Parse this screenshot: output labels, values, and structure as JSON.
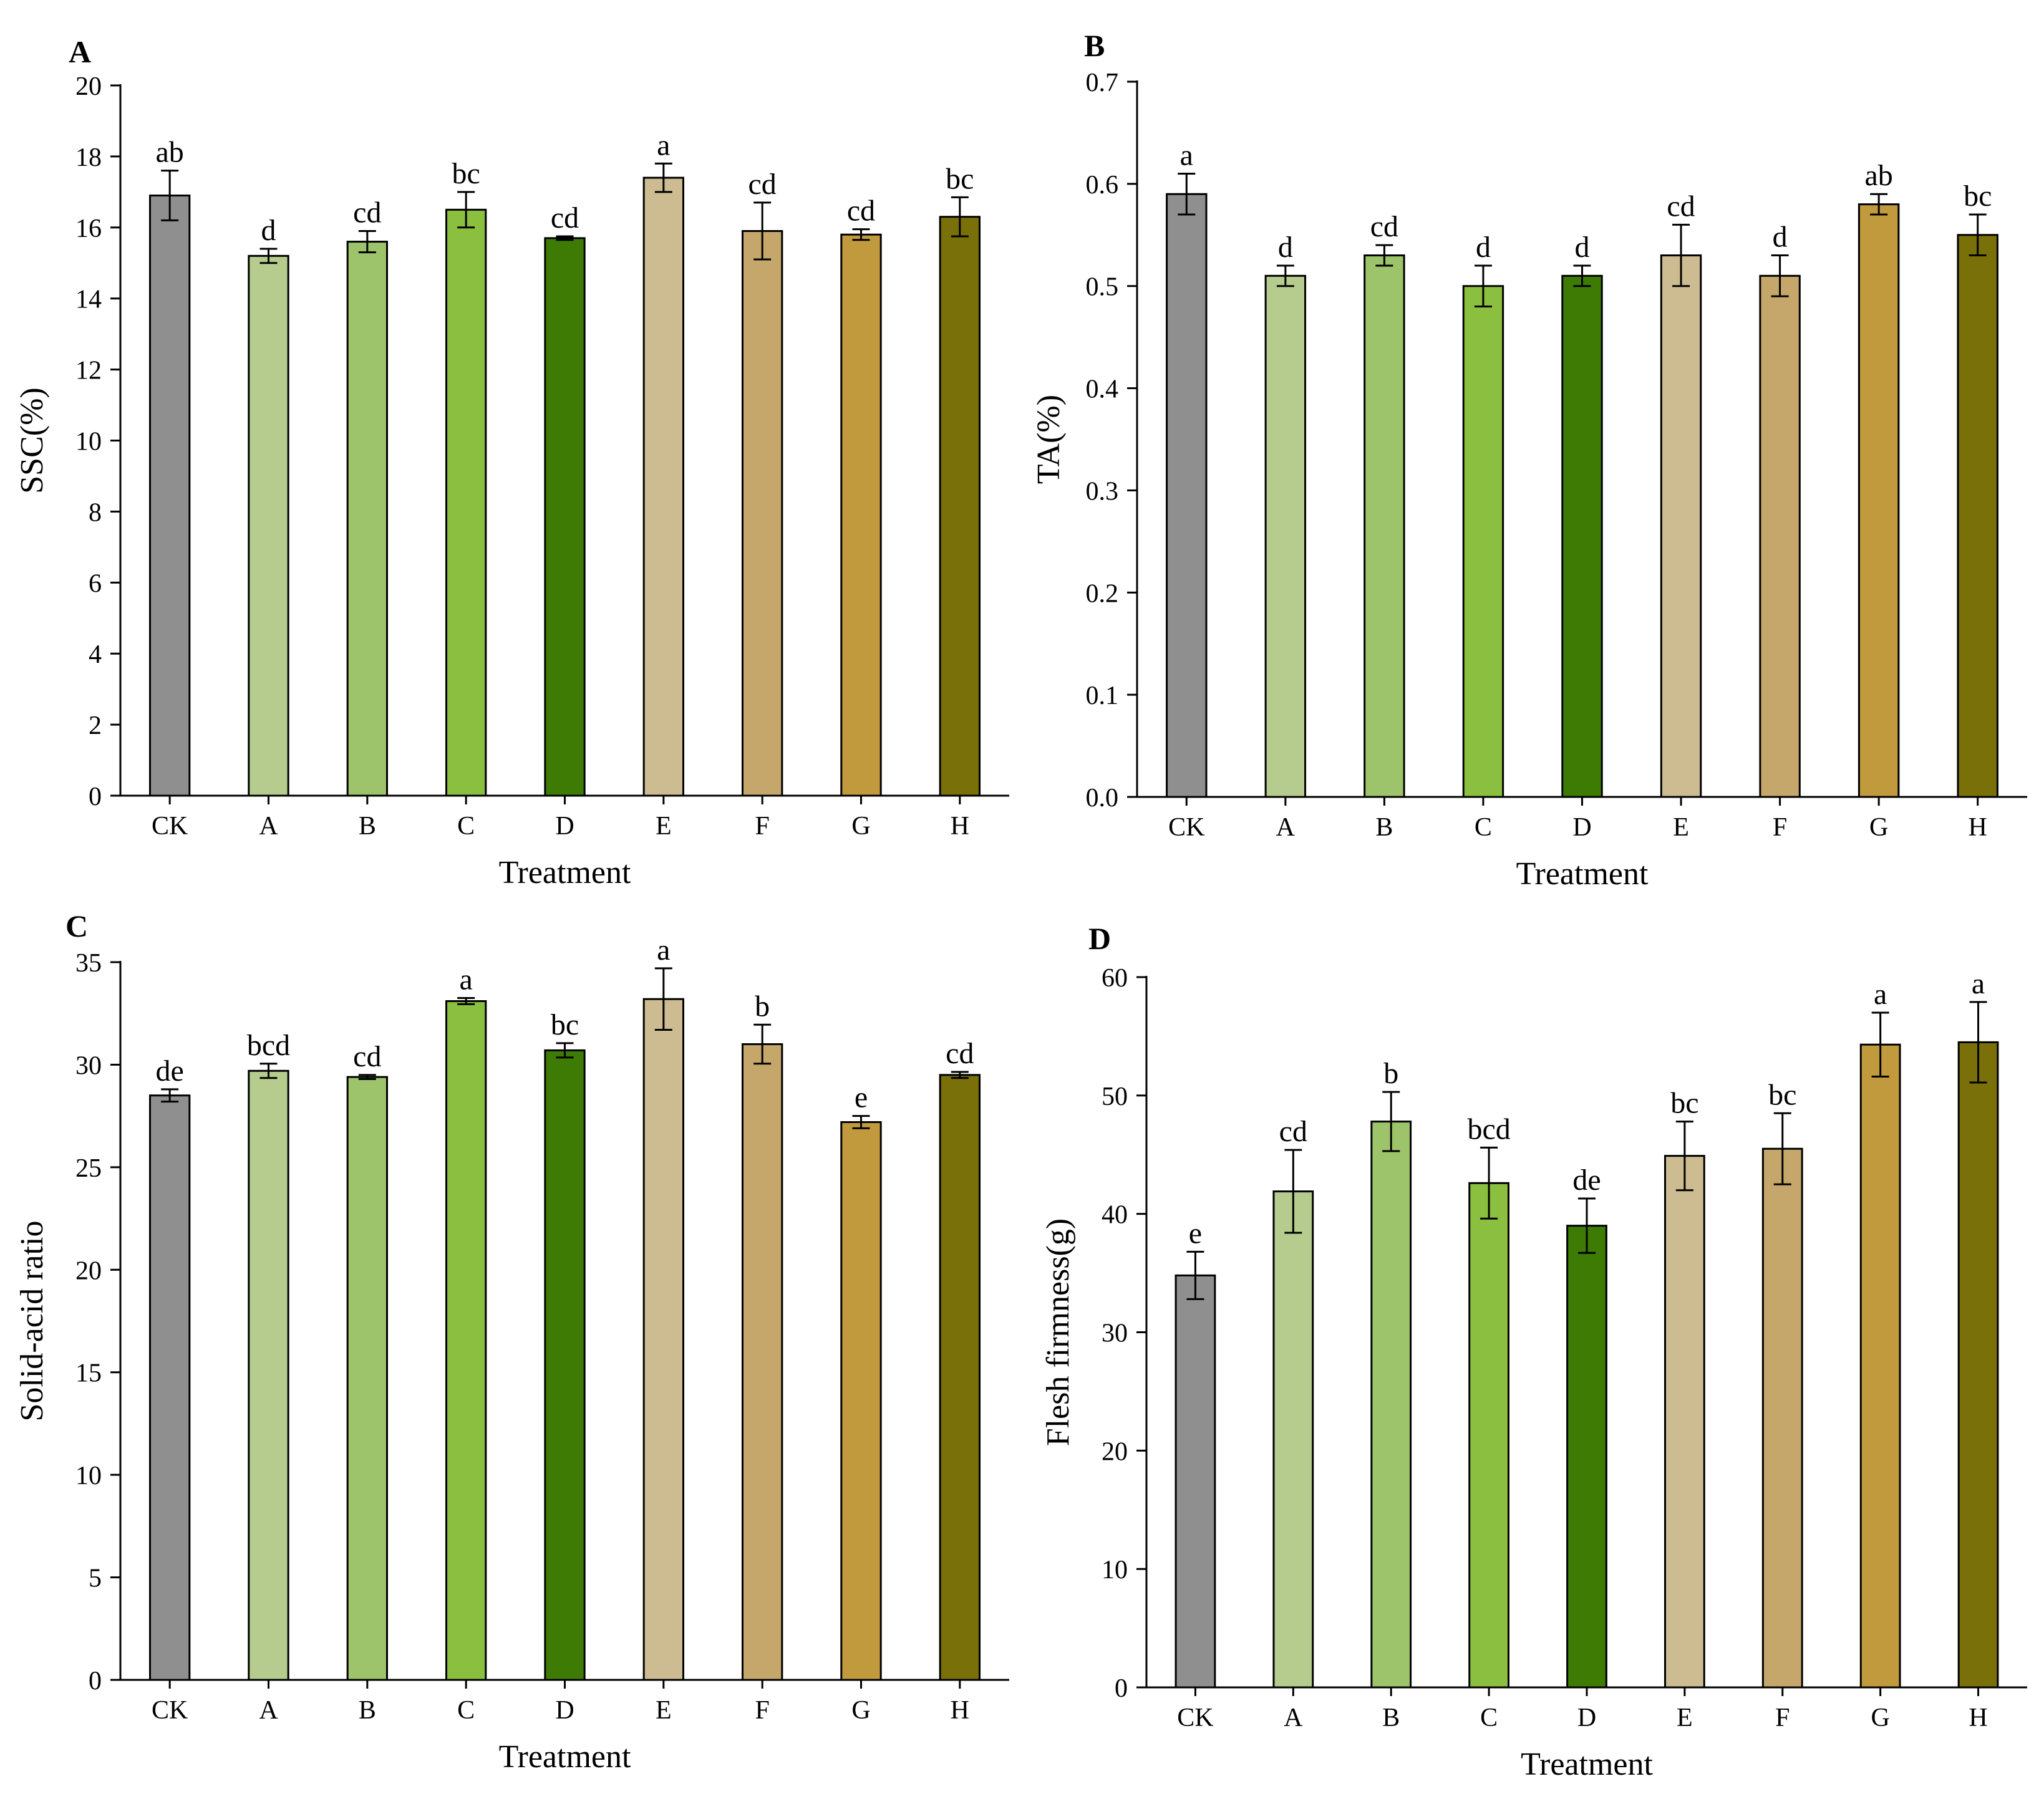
{
  "chart_data": [
    {
      "panel": "A",
      "type": "bar",
      "categories": [
        "CK",
        "A",
        "B",
        "C",
        "D",
        "E",
        "F",
        "G",
        "H"
      ],
      "values": [
        16.9,
        15.2,
        15.6,
        16.5,
        15.7,
        17.4,
        15.9,
        15.8,
        16.3
      ],
      "errors": [
        0.7,
        0.2,
        0.3,
        0.5,
        0.05,
        0.4,
        0.8,
        0.15,
        0.55
      ],
      "significance": [
        "ab",
        "d",
        "cd",
        "bc",
        "cd",
        "a",
        "cd",
        "cd",
        "bc"
      ],
      "xlabel": "Treatment",
      "ylabel": "SSC(%)",
      "ylim": [
        0,
        20
      ],
      "yticks": [
        "0",
        "2",
        "4",
        "6",
        "8",
        "10",
        "12",
        "14",
        "16",
        "18",
        "20"
      ],
      "grid": false
    },
    {
      "panel": "B",
      "type": "bar",
      "categories": [
        "CK",
        "A",
        "B",
        "C",
        "D",
        "E",
        "F",
        "G",
        "H"
      ],
      "values": [
        0.59,
        0.51,
        0.53,
        0.5,
        0.51,
        0.53,
        0.51,
        0.58,
        0.55
      ],
      "errors": [
        0.02,
        0.01,
        0.01,
        0.02,
        0.01,
        0.03,
        0.02,
        0.01,
        0.02
      ],
      "significance": [
        "a",
        "d",
        "cd",
        "d",
        "d",
        "cd",
        "d",
        "ab",
        "bc"
      ],
      "xlabel": "Treatment",
      "ylabel": "TA(%)",
      "ylim": [
        0,
        0.7
      ],
      "yticks": [
        "0.0",
        "0.1",
        "0.2",
        "0.3",
        "0.4",
        "0.5",
        "0.6",
        "0.7"
      ],
      "grid": false
    },
    {
      "panel": "C",
      "type": "bar",
      "categories": [
        "CK",
        "A",
        "B",
        "C",
        "D",
        "E",
        "F",
        "G",
        "H"
      ],
      "values": [
        28.5,
        29.7,
        29.4,
        33.1,
        30.7,
        33.2,
        31.0,
        27.2,
        29.5
      ],
      "errors": [
        0.3,
        0.35,
        0.1,
        0.15,
        0.35,
        1.5,
        0.95,
        0.3,
        0.15
      ],
      "significance": [
        "de",
        "bcd",
        "cd",
        "a",
        "bc",
        "a",
        "b",
        "e",
        "cd"
      ],
      "xlabel": "Treatment",
      "ylabel": "Solid-acid ratio",
      "ylim": [
        0,
        35
      ],
      "yticks": [
        "0",
        "5",
        "10",
        "15",
        "20",
        "25",
        "30",
        "35"
      ],
      "grid": false
    },
    {
      "panel": "D",
      "type": "bar",
      "categories": [
        "CK",
        "A",
        "B",
        "C",
        "D",
        "E",
        "F",
        "G",
        "H"
      ],
      "values": [
        34.8,
        41.9,
        47.8,
        42.6,
        39.0,
        44.9,
        45.5,
        54.3,
        54.5
      ],
      "errors": [
        2.0,
        3.5,
        2.5,
        3.0,
        2.3,
        2.9,
        3.0,
        2.7,
        3.4
      ],
      "significance": [
        "e",
        "cd",
        "b",
        "bcd",
        "de",
        "bc",
        "bc",
        "a",
        "a"
      ],
      "xlabel": "Treatment",
      "ylabel": "Flesh firmness(g)",
      "ylim": [
        0,
        60
      ],
      "yticks": [
        "0",
        "10",
        "20",
        "30",
        "40",
        "50",
        "60"
      ],
      "grid": false
    }
  ],
  "bar_colors": [
    "#8f8f8f",
    "#b5cc8e",
    "#9dc46a",
    "#8bbf3f",
    "#3e7b05",
    "#cdbb92",
    "#c6a76b",
    "#c29a3e",
    "#7a7009"
  ]
}
